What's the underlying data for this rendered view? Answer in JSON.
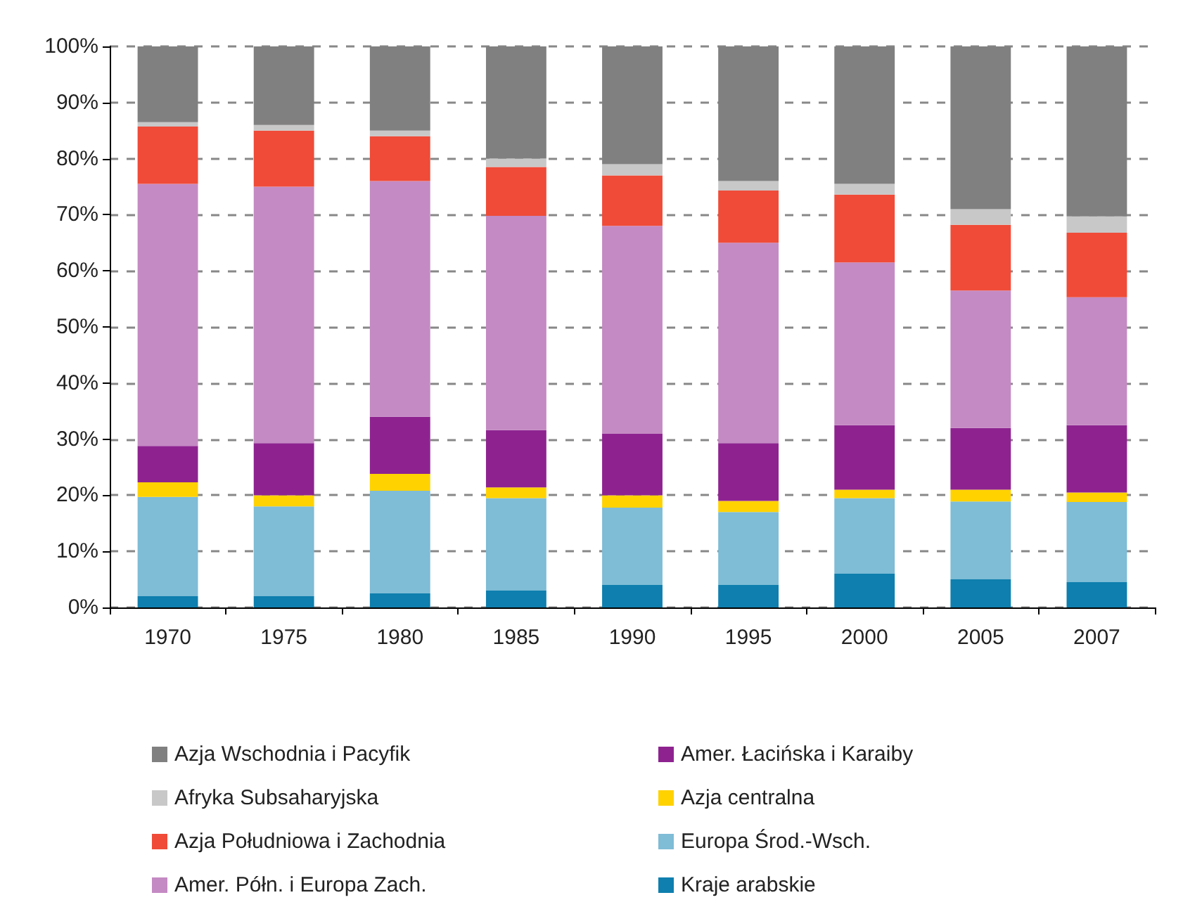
{
  "chart_data": {
    "type": "bar",
    "stacked": true,
    "categories": [
      "1970",
      "1975",
      "1980",
      "1985",
      "1990",
      "1995",
      "2000",
      "2005",
      "2007"
    ],
    "series": [
      {
        "name": "Kraje arabskie",
        "color": "#0e7fae",
        "values": [
          2,
          2,
          2.5,
          3,
          4,
          4,
          6,
          5,
          4.5
        ]
      },
      {
        "name": "Europa Środ.-Wsch.",
        "color": "#7fbcd6",
        "values": [
          17.7,
          16,
          18.3,
          16.5,
          13.8,
          13,
          13.5,
          13.9,
          14.3
        ]
      },
      {
        "name": "Azja centralna",
        "color": "#ffd200",
        "values": [
          2.6,
          2,
          3,
          1.9,
          2.2,
          2,
          1.5,
          2.1,
          1.7
        ]
      },
      {
        "name": "Amer. Łacińska i Karaiby",
        "color": "#8e2390",
        "values": [
          6.5,
          9.3,
          10.2,
          10.2,
          11,
          10.3,
          11.5,
          11,
          12
        ]
      },
      {
        "name": "Amer. Półn. i Europa Zach.",
        "color": "#c48ac3",
        "values": [
          46.7,
          45.7,
          42,
          38.2,
          37,
          35.7,
          29,
          24.5,
          22.8
        ]
      },
      {
        "name": "Azja Południowa i Zachodnia",
        "color": "#ef4b38",
        "values": [
          10.2,
          10,
          8,
          8.7,
          9,
          9.3,
          12.1,
          11.7,
          11.5
        ]
      },
      {
        "name": "Afryka Subsaharyjska",
        "color": "#c8c8c8",
        "values": [
          0.8,
          1,
          1,
          1.5,
          2,
          1.7,
          1.9,
          2.8,
          2.9
        ]
      },
      {
        "name": "Azja Wschodnia i Pacyfik",
        "color": "#808080",
        "values": [
          13.5,
          14,
          15,
          20,
          21,
          24,
          24.5,
          29,
          30.3
        ]
      }
    ],
    "ylim": [
      0,
      100
    ],
    "yticks": [
      {
        "value": 0,
        "label": "0%"
      },
      {
        "value": 10,
        "label": "10%"
      },
      {
        "value": 20,
        "label": "20%"
      },
      {
        "value": 30,
        "label": "30%"
      },
      {
        "value": 40,
        "label": "40%"
      },
      {
        "value": 50,
        "label": "50%"
      },
      {
        "value": 60,
        "label": "60%"
      },
      {
        "value": 70,
        "label": "70%"
      },
      {
        "value": 80,
        "label": "80%"
      },
      {
        "value": 90,
        "label": "90%"
      },
      {
        "value": 100,
        "label": "100%"
      }
    ],
    "grid": "y",
    "legend": "bottom"
  }
}
